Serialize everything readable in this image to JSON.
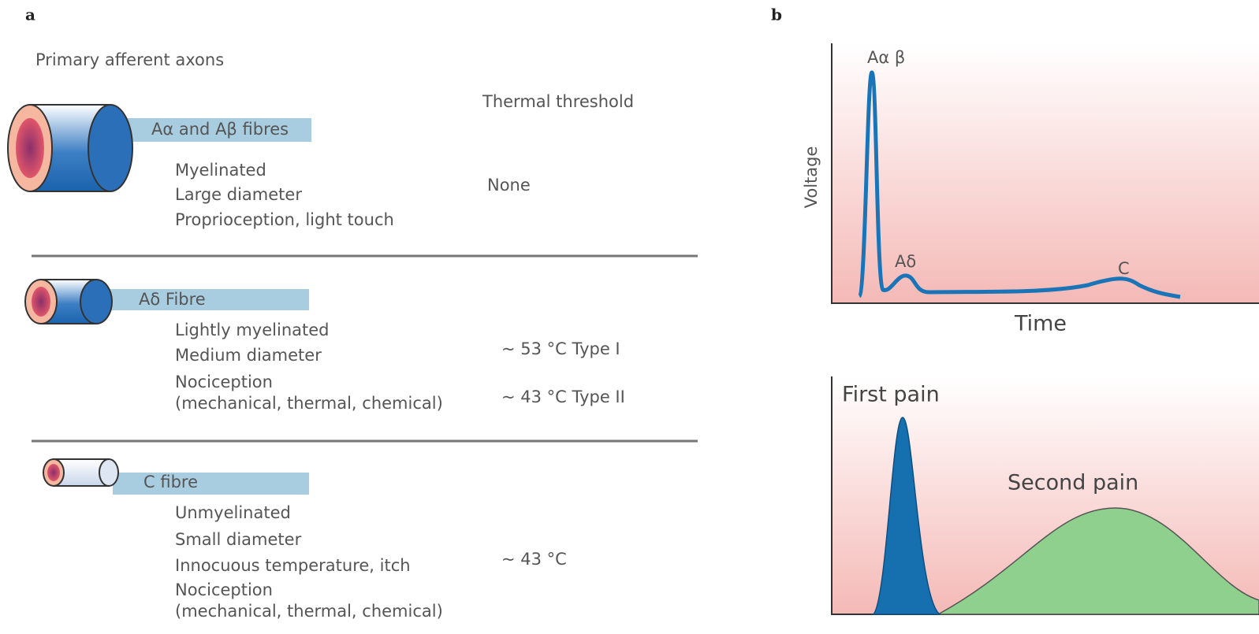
{
  "panel_a": {
    "label": "a",
    "heading": "Primary afferent axons",
    "threshold_heading": "Thermal threshold",
    "fibres": [
      {
        "name": "Aα and Aβ fibres",
        "properties": [
          "Myelinated",
          "Large diameter",
          "Proprioception, light touch"
        ],
        "thresholds": [
          "None"
        ]
      },
      {
        "name": "Aδ Fibre",
        "properties": [
          "Lightly myelinated",
          "Medium diameter",
          "Nociception",
          "(mechanical, thermal, chemical)"
        ],
        "thresholds": [
          "~ 53 °C Type I",
          "~ 43 °C Type II"
        ]
      },
      {
        "name": "C fibre",
        "properties": [
          "Unmyelinated",
          "Small diameter",
          "Innocuous temperature, itch",
          "Nociception",
          "(mechanical, thermal, chemical)"
        ],
        "thresholds": [
          "~ 43 °C"
        ]
      }
    ]
  },
  "panel_b": {
    "label": "b",
    "top_plot": {
      "y_label": "Voltage",
      "x_label": "Time",
      "peaks": [
        "Aα β",
        "Aδ",
        "C"
      ]
    },
    "bottom_plot": {
      "labels": [
        "First pain",
        "Second pain"
      ]
    }
  }
}
